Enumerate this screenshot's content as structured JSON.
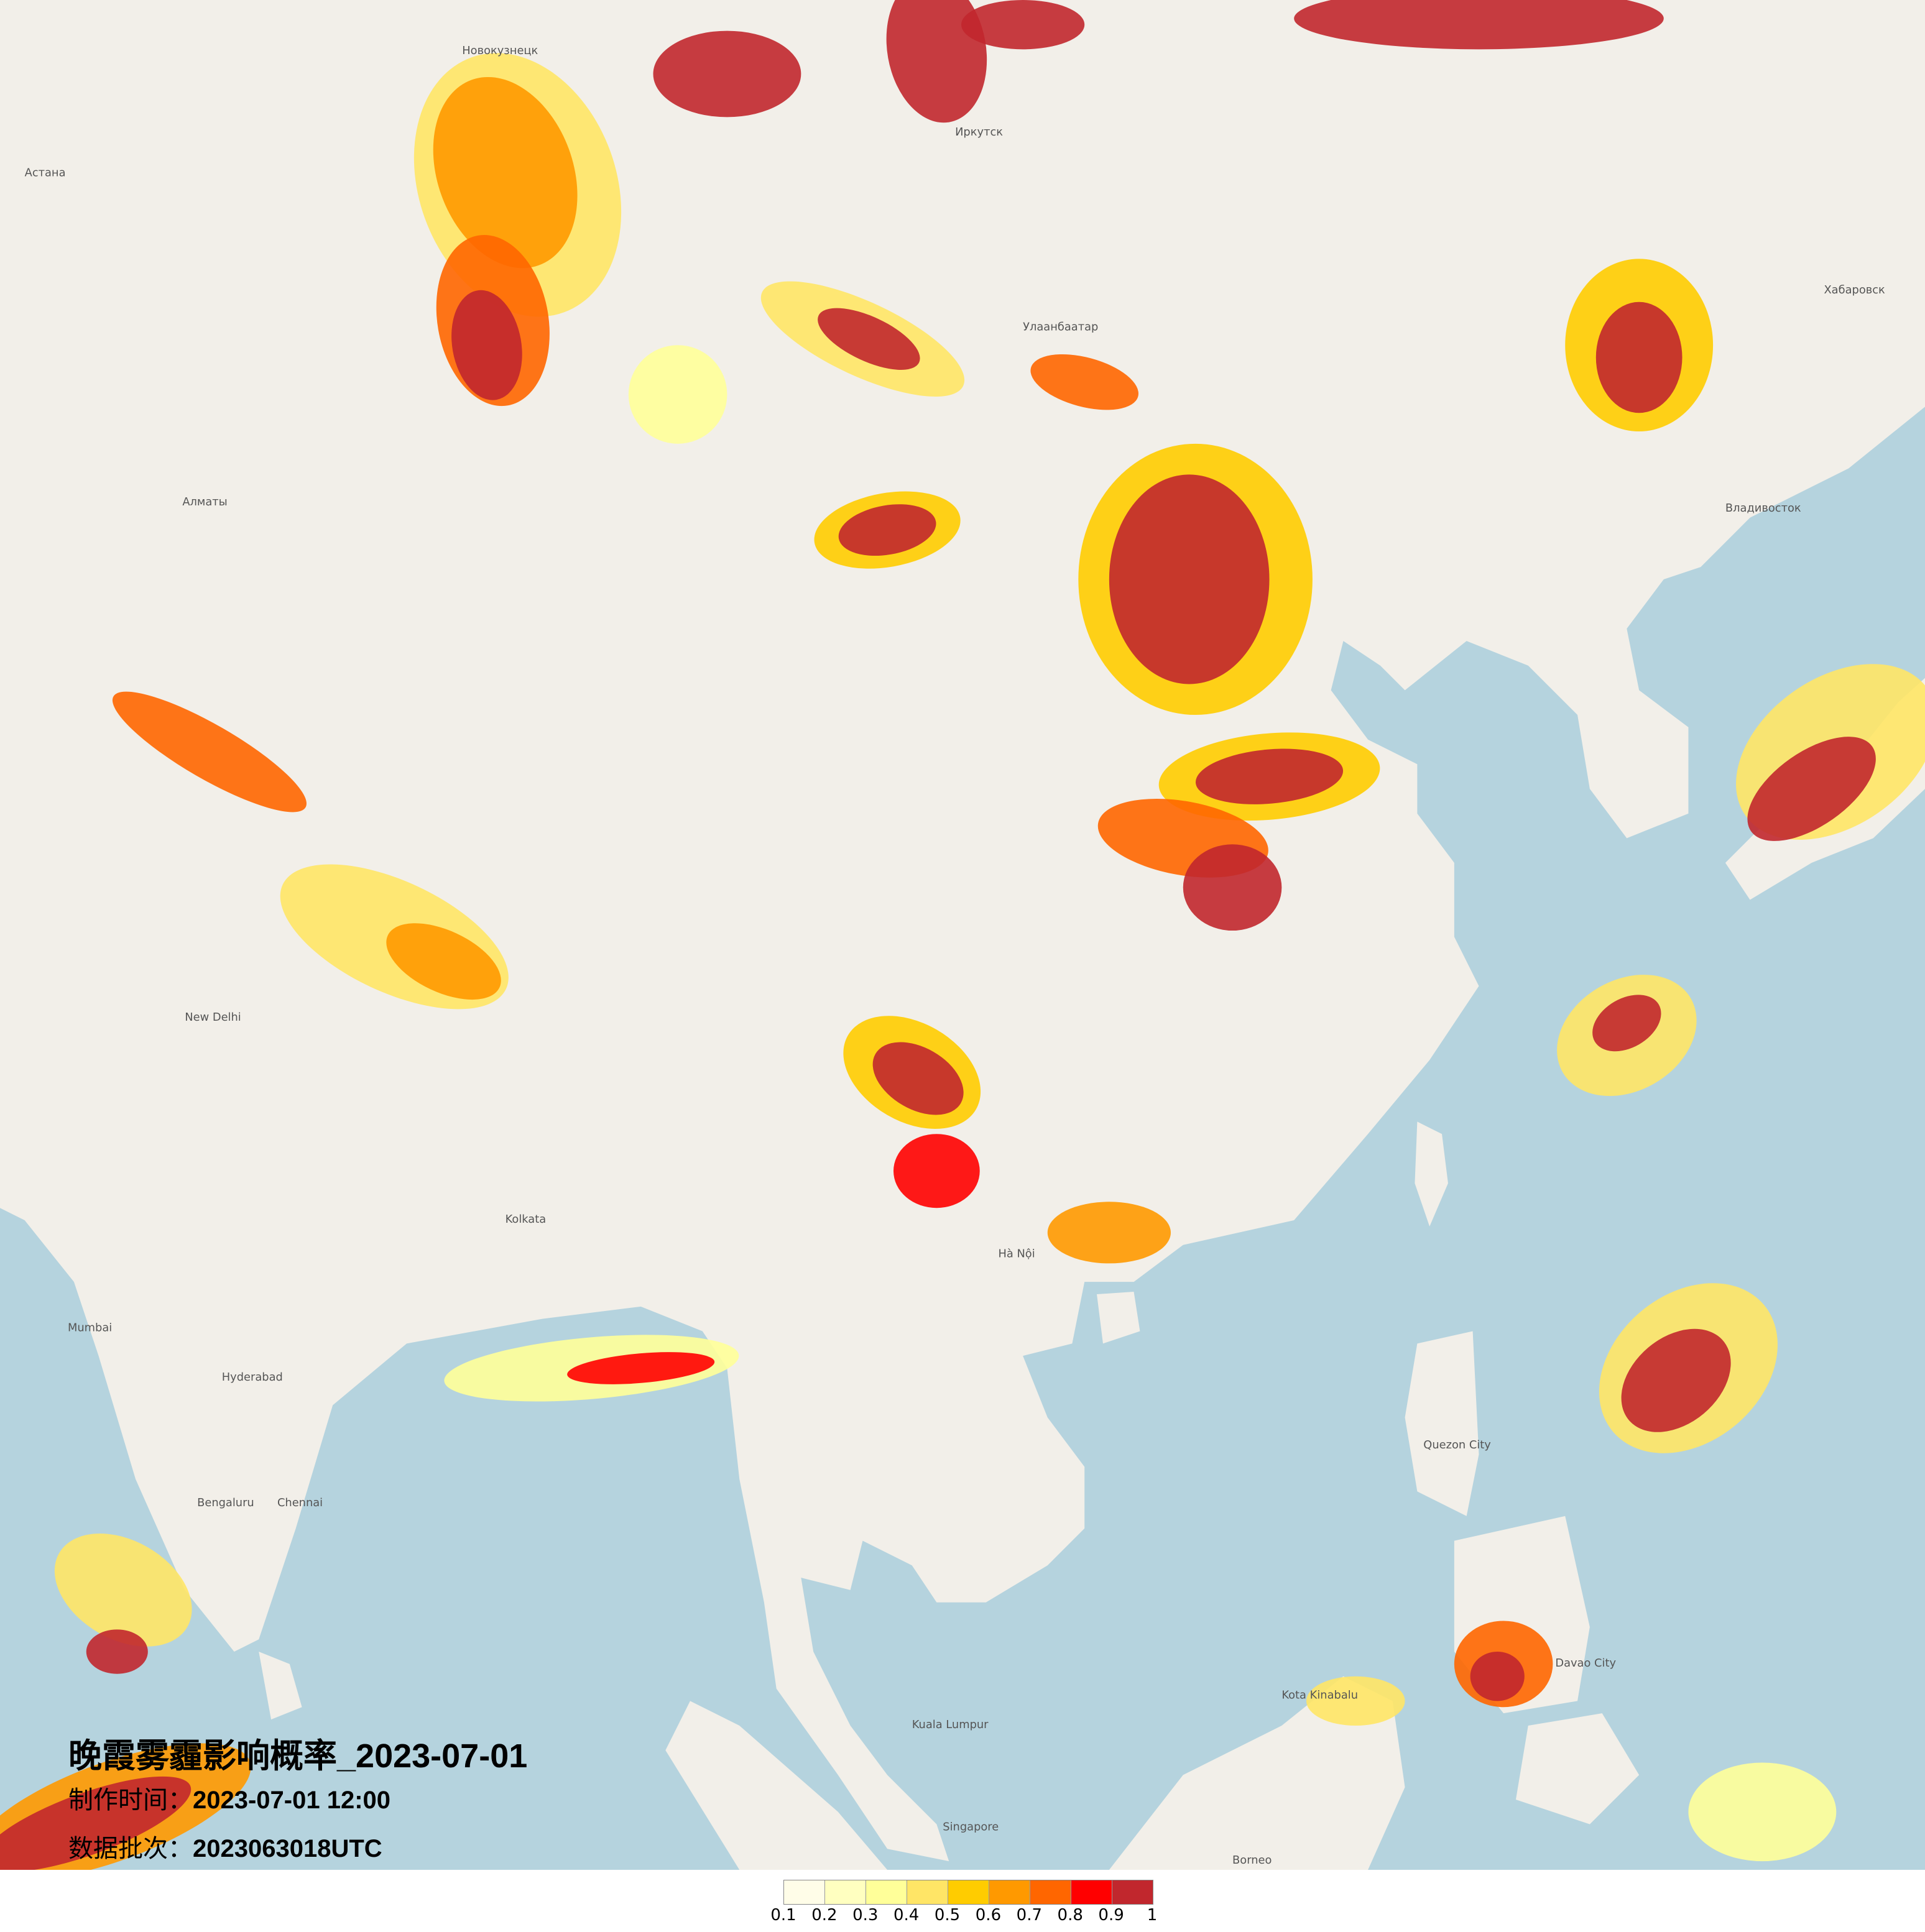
{
  "title": "晚霞雾霾影响概率_2023-07-01",
  "production_time_label": "制作时间：",
  "production_time": "2023-07-01 12:00",
  "data_batch_label": "数据批次：",
  "data_batch": "2023063018UTC",
  "legend": {
    "colors": [
      "#fffde8",
      "#ffffc0",
      "#ffff99",
      "#ffe566",
      "#ffcc00",
      "#ff9900",
      "#ff6600",
      "#ff0000",
      "#c1272d"
    ],
    "ticks": [
      "0.1",
      "0.2",
      "0.3",
      "0.4",
      "0.5",
      "0.6",
      "0.7",
      "0.8",
      "0.9",
      "1"
    ]
  },
  "map": {
    "land_color": "#f2efe9",
    "water_color": "#b5d3de",
    "labels": [
      {
        "name": "Астана"
      },
      {
        "name": "Алматы"
      },
      {
        "name": "Новокузнецк"
      },
      {
        "name": "Иркутск"
      },
      {
        "name": "Улаанбаатар"
      },
      {
        "name": "Хабаровск"
      },
      {
        "name": "Владивосток"
      },
      {
        "name": "New Delhi"
      },
      {
        "name": "Kolkata"
      },
      {
        "name": "Hyderabad"
      },
      {
        "name": "Bengaluru"
      },
      {
        "name": "Chennai"
      },
      {
        "name": "Mumbai"
      },
      {
        "name": "Hà Nội"
      },
      {
        "name": "Quezon City"
      },
      {
        "name": "Kota Kinabalu"
      },
      {
        "name": "Singapore"
      },
      {
        "name": "Borneo"
      },
      {
        "name": "Kuala Lumpur"
      },
      {
        "name": "Davao City"
      }
    ]
  }
}
